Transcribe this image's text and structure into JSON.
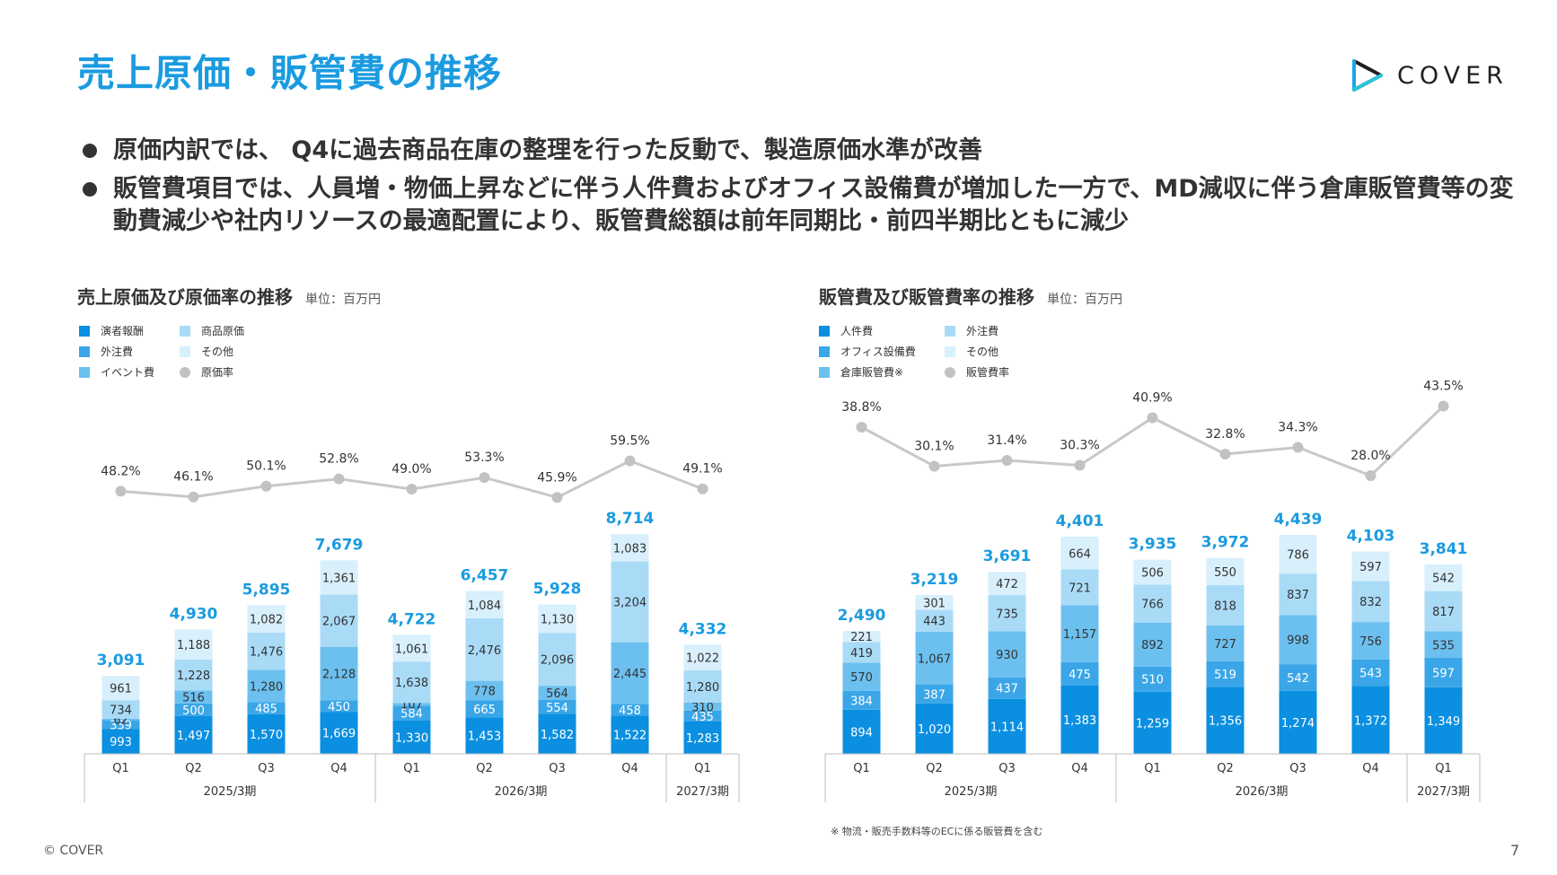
{
  "page": {
    "title": "売上原価・販管費の推移",
    "logo_text": "COVER",
    "bullets": [
      "原価内訳では、 Q4に過去商品在庫の整理を行った反動で、製造原価水準が改善",
      "販管費項目では、人員増・物価上昇などに伴う人件費およびオフィス設備費が増加した一方で、MD減収に伴う倉庫販管費等の変動費減少や社内リソースの最適配置により、販管費総額は前年同期比・前四半期比ともに減少"
    ],
    "footnote": "※ 物流・販売手数料等のECに係る販管費を含む",
    "copyright": "© COVER",
    "page_number": "7",
    "colors": {
      "title": "#1a9be0",
      "total_label": "#1a9be0",
      "rate_line": "#c8c8c8",
      "rate_dot": "#c2c2c2"
    }
  },
  "chart_data": [
    {
      "type": "bar",
      "title": "売上原価及び原価率の推移",
      "unit": "単位：百万円",
      "categories": [
        "Q1",
        "Q2",
        "Q3",
        "Q4",
        "Q1",
        "Q2",
        "Q3",
        "Q4",
        "Q1"
      ],
      "periods": [
        {
          "label": "2025/3期",
          "count": 4
        },
        {
          "label": "2026/3期",
          "count": 4
        },
        {
          "label": "2027/3期",
          "count": 1
        }
      ],
      "series": [
        {
          "name": "演者報酬",
          "color": "#0b8fe0",
          "values": [
            993,
            1497,
            1570,
            1669,
            1330,
            1453,
            1582,
            1522,
            1283
          ]
        },
        {
          "name": "外注費",
          "color": "#3aa6e8",
          "values": [
            339,
            500,
            485,
            450,
            584,
            665,
            554,
            458,
            435
          ]
        },
        {
          "name": "イベント費",
          "color": "#6cc0f0",
          "values": [
            62,
            516,
            1280,
            2128,
            107,
            778,
            564,
            2445,
            310
          ]
        },
        {
          "name": "商品原価",
          "color": "#a9dbf7",
          "values": [
            734,
            1228,
            1476,
            2067,
            1638,
            2476,
            2096,
            3204,
            1280
          ]
        },
        {
          "name": "その他",
          "color": "#d8effc",
          "values": [
            961,
            1188,
            1082,
            1361,
            1061,
            1084,
            1130,
            1083,
            1022
          ]
        }
      ],
      "totals": [
        "3,091",
        "4,930",
        "5,895",
        "7,679",
        "4,722",
        "6,457",
        "5,928",
        "8,714",
        "4,332"
      ],
      "rate": {
        "name": "原価率",
        "values": [
          48.2,
          46.1,
          50.1,
          52.8,
          49.0,
          53.3,
          45.9,
          59.5,
          49.1
        ],
        "labels": [
          "48.2%",
          "46.1%",
          "50.1%",
          "52.8%",
          "49.0%",
          "53.3%",
          "45.9%",
          "59.5%",
          "49.1%"
        ]
      }
    },
    {
      "type": "bar",
      "title": "販管費及び販管費率の推移",
      "unit": "単位：百万円",
      "categories": [
        "Q1",
        "Q2",
        "Q3",
        "Q4",
        "Q1",
        "Q2",
        "Q3",
        "Q4",
        "Q1"
      ],
      "periods": [
        {
          "label": "2025/3期",
          "count": 4
        },
        {
          "label": "2026/3期",
          "count": 4
        },
        {
          "label": "2027/3期",
          "count": 1
        }
      ],
      "series": [
        {
          "name": "人件費",
          "color": "#0b8fe0",
          "values": [
            894,
            1020,
            1114,
            1383,
            1259,
            1356,
            1274,
            1372,
            1349
          ]
        },
        {
          "name": "オフィス設備費",
          "color": "#3aa6e8",
          "values": [
            384,
            387,
            437,
            475,
            510,
            519,
            542,
            543,
            597
          ]
        },
        {
          "name": "倉庫販管費※",
          "color": "#6cc0f0",
          "values": [
            570,
            1067,
            930,
            1157,
            892,
            727,
            998,
            756,
            535
          ]
        },
        {
          "name": "外注費",
          "color": "#a9dbf7",
          "values": [
            419,
            443,
            735,
            721,
            766,
            818,
            837,
            832,
            817
          ]
        },
        {
          "name": "その他",
          "color": "#d8effc",
          "values": [
            221,
            301,
            472,
            664,
            506,
            550,
            786,
            597,
            542
          ]
        }
      ],
      "totals": [
        "2,490",
        "3,219",
        "3,691",
        "4,401",
        "3,935",
        "3,972",
        "4,439",
        "4,103",
        "3,841"
      ],
      "rate": {
        "name": "販管費率",
        "values": [
          38.8,
          30.1,
          31.4,
          30.3,
          40.9,
          32.8,
          34.3,
          28.0,
          43.5
        ],
        "labels": [
          "38.8%",
          "30.1%",
          "31.4%",
          "30.3%",
          "40.9%",
          "32.8%",
          "34.3%",
          "28.0%",
          "43.5%"
        ]
      }
    }
  ]
}
